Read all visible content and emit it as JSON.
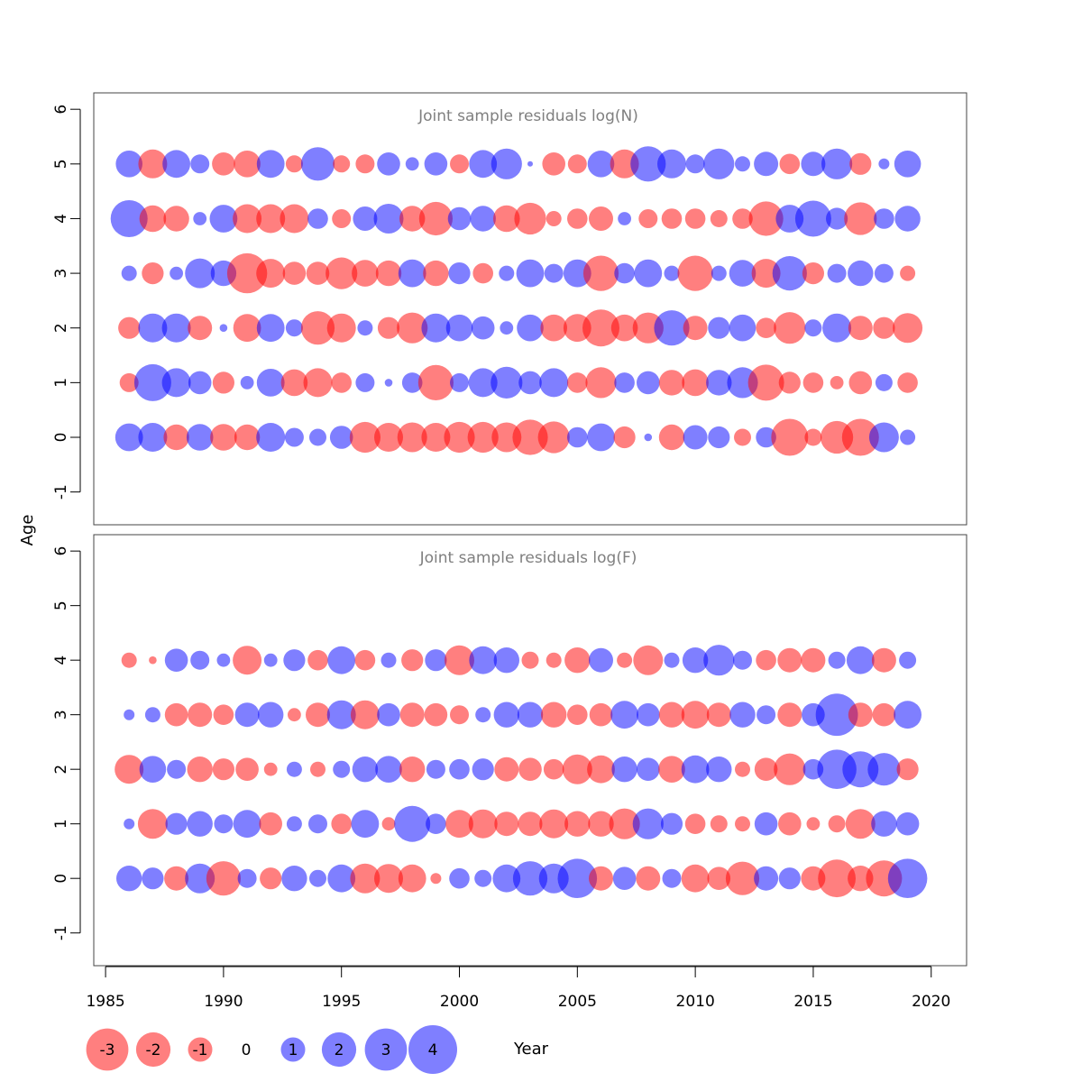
{
  "chart_data": {
    "type": "bubble",
    "xlabel": "Year",
    "ylabel": "Age",
    "xlim": [
      1984.5,
      2021.5
    ],
    "ylim": [
      -1.6,
      6.3
    ],
    "x_ticks": [
      1985,
      1990,
      1995,
      2000,
      2005,
      2010,
      2015,
      2020
    ],
    "y_ticks": [
      -1,
      0,
      1,
      2,
      3,
      4,
      5,
      6
    ],
    "years": [
      1986,
      1987,
      1988,
      1989,
      1990,
      1991,
      1992,
      1993,
      1994,
      1995,
      1996,
      1997,
      1998,
      1999,
      2000,
      2001,
      2002,
      2003,
      2004,
      2005,
      2006,
      2007,
      2008,
      2009,
      2010,
      2011,
      2012,
      2013,
      2014,
      2015,
      2016,
      2017,
      2018,
      2019
    ],
    "colors": {
      "negative": "#ff0000",
      "positive": "#0000ff",
      "opacity": 0.5
    },
    "panels": [
      {
        "title": "Joint sample residuals log(N)",
        "ages": [
          0,
          1,
          2,
          3,
          4,
          5
        ],
        "residuals": {
          "0": [
            1.3,
            1.4,
            -1.1,
            1.2,
            -1.2,
            -1.1,
            1.4,
            0.6,
            0.5,
            0.9,
            -1.6,
            -1.4,
            -1.5,
            -1.4,
            -1.6,
            -1.6,
            -1.5,
            -2.1,
            -1.7,
            0.7,
            1.3,
            -0.8,
            0.1,
            -1.1,
            1.0,
            0.8,
            -0.5,
            0.7,
            -2.3,
            -0.5,
            -1.8,
            -2.3,
            1.5,
            0.4
          ],
          "1": [
            -0.6,
            2.3,
            1.4,
            0.9,
            -0.8,
            0.3,
            1.3,
            -1.2,
            -1.4,
            -0.7,
            0.6,
            0.1,
            0.7,
            -2.1,
            0.6,
            1.4,
            1.7,
            0.9,
            1.4,
            -0.7,
            -1.6,
            0.7,
            0.9,
            -1.1,
            -1.2,
            1.1,
            1.6,
            -2.2,
            -0.8,
            -0.7,
            -0.3,
            -0.9,
            0.5,
            -0.7
          ],
          "2": [
            -0.8,
            1.4,
            1.4,
            -1.0,
            0.1,
            -1.3,
            1.3,
            0.5,
            -1.9,
            -1.4,
            0.4,
            -0.8,
            -1.6,
            1.4,
            1.2,
            0.9,
            0.3,
            1.2,
            -1.2,
            -1.3,
            -2.3,
            -1.2,
            -1.6,
            2.1,
            -1.0,
            0.8,
            1.2,
            -0.7,
            -1.7,
            0.5,
            1.4,
            -1.0,
            -0.8,
            -1.5
          ],
          "3": [
            0.4,
            -0.8,
            0.3,
            1.5,
            1.1,
            -2.7,
            -1.4,
            -0.9,
            -0.9,
            -1.7,
            -1.2,
            -1.1,
            1.3,
            -1.1,
            0.8,
            -0.7,
            0.4,
            1.3,
            0.6,
            1.3,
            -2.1,
            0.7,
            1.3,
            0.4,
            -2.1,
            0.4,
            1.2,
            -1.4,
            2.0,
            -0.8,
            0.6,
            1.1,
            0.6,
            -0.4
          ],
          "4": [
            2.3,
            -1.2,
            -1.1,
            0.3,
            1.3,
            -1.4,
            -1.4,
            -1.4,
            0.7,
            -0.6,
            1.0,
            1.5,
            -1.1,
            -1.9,
            0.9,
            1.1,
            -1.2,
            -1.7,
            -0.4,
            -0.7,
            -1.0,
            0.3,
            -0.6,
            -0.7,
            -0.7,
            -0.5,
            -0.7,
            -2.0,
            1.3,
            2.2,
            0.8,
            -1.8,
            0.7,
            1.1
          ],
          "5": [
            1.2,
            -1.4,
            1.3,
            0.6,
            -0.9,
            -1.2,
            1.3,
            -0.5,
            1.9,
            -0.5,
            -0.6,
            0.9,
            0.3,
            0.9,
            -0.6,
            1.3,
            1.6,
            0.05,
            -0.9,
            -0.6,
            1.2,
            -1.4,
            2.1,
            1.4,
            0.6,
            1.6,
            0.4,
            1.0,
            -0.7,
            1.0,
            1.6,
            -0.8,
            0.2,
            1.2
          ]
        }
      },
      {
        "title": "Joint sample residuals log(F)",
        "ages": [
          0,
          1,
          2,
          3,
          4
        ],
        "residuals": {
          "0": [
            1.1,
            0.8,
            -1.0,
            1.5,
            -2.0,
            0.6,
            -0.8,
            1.1,
            0.5,
            1.3,
            -1.5,
            -1.4,
            -1.3,
            -0.2,
            0.7,
            0.5,
            1.3,
            2.0,
            1.5,
            2.6,
            -1.0,
            0.9,
            -1.0,
            0.6,
            -1.3,
            -0.9,
            -1.9,
            1.0,
            0.8,
            -1.0,
            -2.4,
            -1.1,
            -2.2,
            2.6
          ],
          "1": [
            0.2,
            -1.5,
            0.8,
            1.1,
            0.6,
            1.3,
            -0.9,
            0.4,
            0.6,
            -0.7,
            1.3,
            -0.3,
            2.2,
            0.7,
            -1.3,
            -1.4,
            -1.0,
            -1.0,
            -1.4,
            -1.1,
            -1.1,
            -1.6,
            1.6,
            0.8,
            -0.7,
            -0.5,
            -0.4,
            0.9,
            -0.9,
            -0.3,
            -0.5,
            -1.5,
            1.1,
            0.9
          ],
          "2": [
            -1.4,
            1.2,
            0.6,
            -1.1,
            -0.8,
            -0.9,
            -0.3,
            0.4,
            -0.4,
            0.5,
            1.1,
            1.2,
            -1.1,
            0.6,
            0.7,
            0.8,
            -1.0,
            -0.9,
            -0.7,
            -1.5,
            -1.3,
            1.1,
            0.9,
            -1.2,
            1.3,
            1.1,
            -0.4,
            -0.9,
            -1.7,
            0.7,
            2.6,
            2.2,
            1.8,
            -0.8
          ],
          "3": [
            0.2,
            0.4,
            -0.9,
            -1.0,
            -0.7,
            1.0,
            1.1,
            -0.3,
            -1.0,
            1.4,
            -1.4,
            0.9,
            -1.0,
            -0.9,
            -0.6,
            0.4,
            1.1,
            1.1,
            -1.1,
            -0.7,
            -0.9,
            1.3,
            0.9,
            -1.1,
            -1.3,
            -1.0,
            1.1,
            0.6,
            -1.0,
            0.9,
            3.0,
            -1.0,
            -0.9,
            1.3
          ],
          "4": [
            -0.4,
            -0.1,
            0.9,
            0.6,
            0.3,
            -1.4,
            0.3,
            0.8,
            -0.7,
            1.3,
            -0.7,
            0.4,
            -0.8,
            0.8,
            -1.5,
            1.3,
            1.1,
            -0.5,
            -0.4,
            -1.1,
            1.0,
            -0.4,
            -1.5,
            0.4,
            1.1,
            1.6,
            0.6,
            -0.7,
            -1.0,
            -1.0,
            0.5,
            1.3,
            -1.0,
            0.5
          ]
        }
      }
    ],
    "legend": {
      "position": "bottom",
      "items": [
        {
          "value": -3,
          "label": "-3"
        },
        {
          "value": -2,
          "label": "-2"
        },
        {
          "value": -1,
          "label": "-1"
        },
        {
          "value": 0,
          "label": "0"
        },
        {
          "value": 1,
          "label": "1"
        },
        {
          "value": 2,
          "label": "2"
        },
        {
          "value": 3,
          "label": "3"
        },
        {
          "value": 4,
          "label": "4"
        }
      ]
    },
    "grid": false
  }
}
